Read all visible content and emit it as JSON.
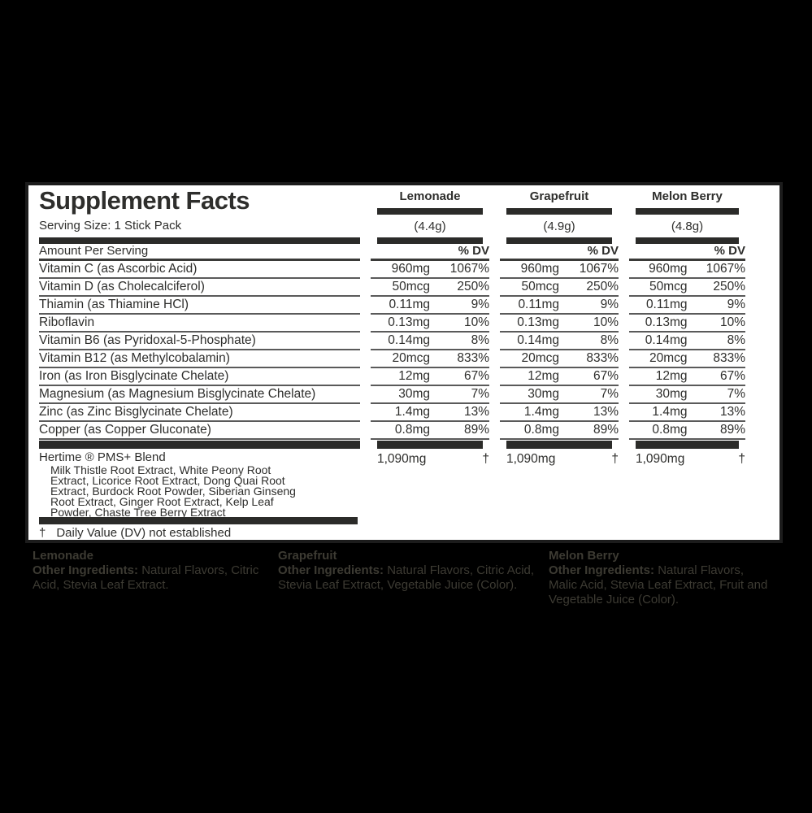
{
  "colors": {
    "background": "#000000",
    "card_background": "#ffffff",
    "card_border": "#1c1c1c",
    "ink": "#2e2e2c",
    "thick_bar": "#2b2b29",
    "row_rule": "#5a5a5a",
    "footer_text": "#3d3b33"
  },
  "label": {
    "title": "Supplement Facts",
    "serving_size": "Serving Size: 1 Stick Pack",
    "amount_per_serving": "Amount Per Serving",
    "percent_dv": "% DV",
    "flavors": [
      {
        "name": "Lemonade",
        "weight": "(4.4g)"
      },
      {
        "name": "Grapefruit",
        "weight": "(4.9g)"
      },
      {
        "name": "Melon Berry",
        "weight": "(4.8g)"
      }
    ],
    "nutrients": [
      {
        "name": "Vitamin C (as Ascorbic Acid)",
        "values": [
          {
            "amount": "960mg",
            "dv": "1067%"
          },
          {
            "amount": "960mg",
            "dv": "1067%"
          },
          {
            "amount": "960mg",
            "dv": "1067%"
          }
        ]
      },
      {
        "name": "Vitamin D (as Cholecalciferol)",
        "values": [
          {
            "amount": "50mcg",
            "dv": "250%"
          },
          {
            "amount": "50mcg",
            "dv": "250%"
          },
          {
            "amount": "50mcg",
            "dv": "250%"
          }
        ]
      },
      {
        "name": "Thiamin (as Thiamine HCl)",
        "values": [
          {
            "amount": "0.11mg",
            "dv": "9%"
          },
          {
            "amount": "0.11mg",
            "dv": "9%"
          },
          {
            "amount": "0.11mg",
            "dv": "9%"
          }
        ]
      },
      {
        "name": "Riboflavin",
        "values": [
          {
            "amount": "0.13mg",
            "dv": "10%"
          },
          {
            "amount": "0.13mg",
            "dv": "10%"
          },
          {
            "amount": "0.13mg",
            "dv": "10%"
          }
        ]
      },
      {
        "name": "Vitamin B6 (as Pyridoxal-5-Phosphate)",
        "values": [
          {
            "amount": "0.14mg",
            "dv": "8%"
          },
          {
            "amount": "0.14mg",
            "dv": "8%"
          },
          {
            "amount": "0.14mg",
            "dv": "8%"
          }
        ]
      },
      {
        "name": "Vitamin B12 (as Methylcobalamin)",
        "values": [
          {
            "amount": "20mcg",
            "dv": "833%"
          },
          {
            "amount": "20mcg",
            "dv": "833%"
          },
          {
            "amount": "20mcg",
            "dv": "833%"
          }
        ]
      },
      {
        "name": "Iron (as Iron Bisglycinate Chelate)",
        "values": [
          {
            "amount": "12mg",
            "dv": "67%"
          },
          {
            "amount": "12mg",
            "dv": "67%"
          },
          {
            "amount": "12mg",
            "dv": "67%"
          }
        ]
      },
      {
        "name": "Magnesium (as Magnesium Bisglycinate Chelate)",
        "values": [
          {
            "amount": "30mg",
            "dv": "7%"
          },
          {
            "amount": "30mg",
            "dv": "7%"
          },
          {
            "amount": "30mg",
            "dv": "7%"
          }
        ]
      },
      {
        "name": "Zinc (as Zinc Bisglycinate Chelate)",
        "values": [
          {
            "amount": "1.4mg",
            "dv": "13%"
          },
          {
            "amount": "1.4mg",
            "dv": "13%"
          },
          {
            "amount": "1.4mg",
            "dv": "13%"
          }
        ]
      },
      {
        "name": "Copper (as Copper Gluconate)",
        "values": [
          {
            "amount": "0.8mg",
            "dv": "89%"
          },
          {
            "amount": "0.8mg",
            "dv": "89%"
          },
          {
            "amount": "0.8mg",
            "dv": "89%"
          }
        ]
      }
    ],
    "blend": {
      "name": "Hertime ® PMS+ Blend",
      "lines": [
        "Milk Thistle Root Extract, White Peony Root",
        "Extract, Licorice Root Extract, Dong Quai Root",
        "Extract, Burdock Root Powder,  Siberian Ginseng",
        "Root Extract, Ginger Root Extract, Kelp Leaf",
        "Powder, Chaste Tree Berry Extract"
      ],
      "values": [
        {
          "amount": "1,090mg",
          "dv": "†"
        },
        {
          "amount": "1,090mg",
          "dv": "†"
        },
        {
          "amount": "1,090mg",
          "dv": "†"
        }
      ]
    },
    "footnote": {
      "symbol": "†",
      "text": "Daily Value (DV) not established"
    }
  },
  "footer": {
    "columns": [
      {
        "flavor": "Lemonade",
        "label": "Other Ingredients:",
        "text": "Natural Flavors, Citric Acid, Stevia Leaf Extract."
      },
      {
        "flavor": "Grapefruit",
        "label": "Other Ingredients:",
        "text": "Natural Flavors, Citric Acid, Stevia Leaf Extract, Vegetable Juice (Color)."
      },
      {
        "flavor": "Melon Berry",
        "label": "Other Ingredients:",
        "text": "Natural Flavors, Malic Acid, Stevia Leaf Extract, Fruit and Vegetable Juice (Color)."
      }
    ]
  }
}
